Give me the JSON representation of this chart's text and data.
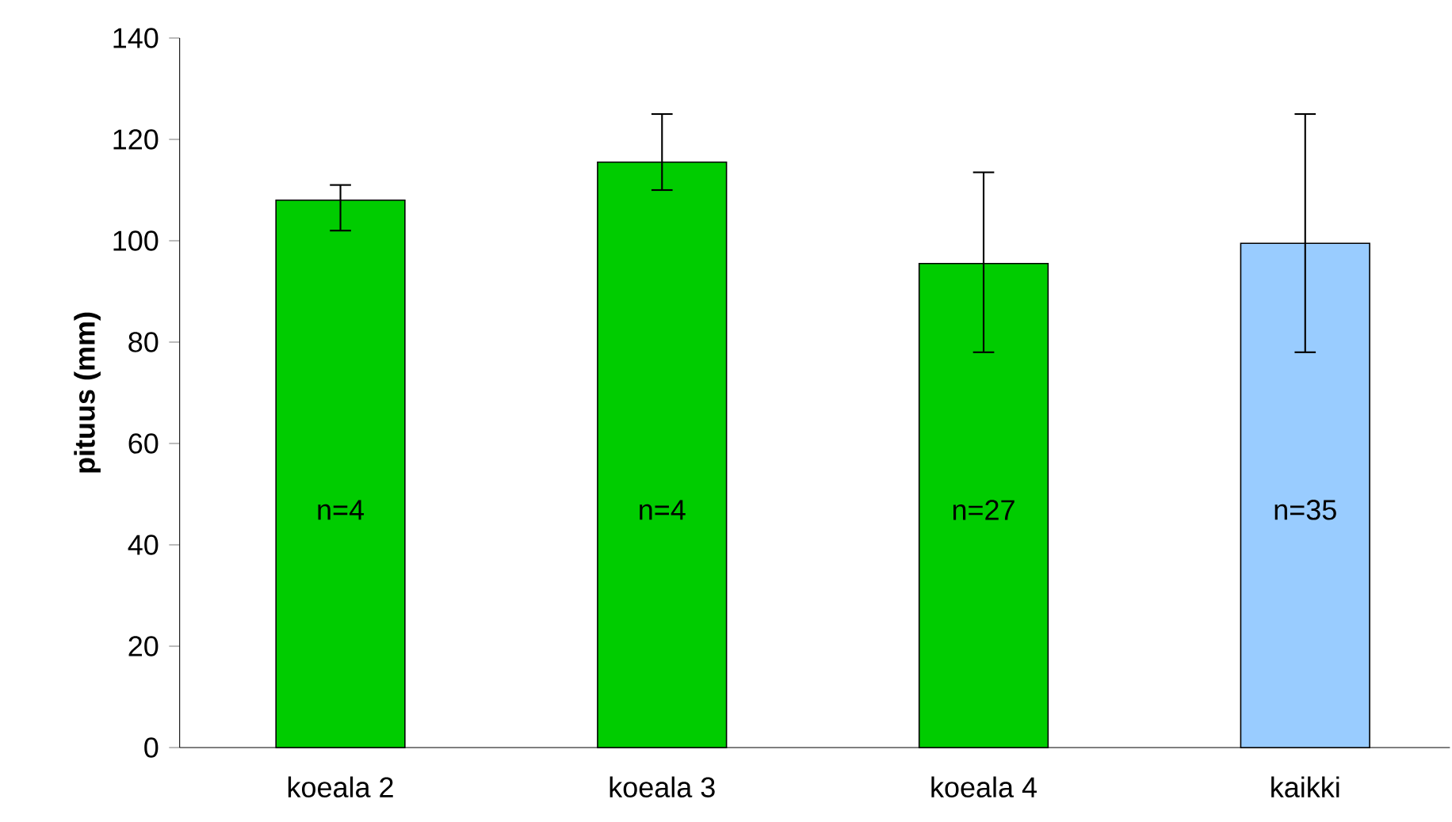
{
  "chart_data": {
    "type": "bar",
    "ylabel": "pituus (mm)",
    "categories": [
      "koeala 2",
      "koeala 3",
      "koeala 4",
      "kaikki"
    ],
    "values": [
      108,
      115.5,
      95.5,
      99.5
    ],
    "errors": [
      [
        102,
        111
      ],
      [
        110,
        125
      ],
      [
        78,
        113.5
      ],
      [
        78,
        125
      ]
    ],
    "colors": [
      "#00cc00",
      "#00cc00",
      "#00cc00",
      "#99ccff"
    ],
    "ylim": [
      0,
      140
    ],
    "yticks": [
      0,
      20,
      40,
      60,
      80,
      100,
      120,
      140
    ],
    "grid": false,
    "annotations": [
      "n=4",
      "n=4",
      "n=27",
      "n=35"
    ]
  }
}
